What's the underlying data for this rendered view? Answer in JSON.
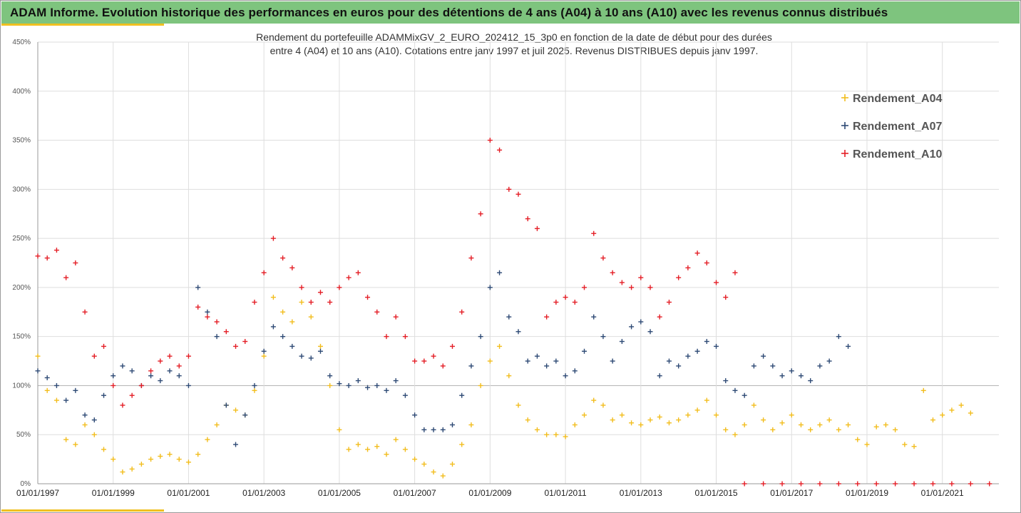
{
  "banner": {
    "title": "ADAM Informe. Evolution historique des performances en euros pour des détentions de 4 ans (A04) à 10 ans (A10) avec les revenus connus distribués"
  },
  "chart_data": {
    "type": "scatter",
    "title": "Rendement du portefeuille ADAMMixGV_2_EURO_202412_15_3p0 en fonction de la date de début pour des durées",
    "subtitle": "entre 4 (A04) et 10 ans (A10). Cotations entre janv 1997 et juil 2025. Revenus DISTRIBUES depuis janv 1997.",
    "xlabel": "",
    "ylabel": "",
    "x_range": [
      "01/01/1997",
      "01/07/2022"
    ],
    "ylim": [
      0,
      450
    ],
    "y_unit": "%",
    "yticks": [
      "0%",
      "50%",
      "100%",
      "150%",
      "200%",
      "250%",
      "300%",
      "350%",
      "400%",
      "450%"
    ],
    "xticks": [
      "01/01/1997",
      "01/01/1999",
      "01/01/2001",
      "01/01/2003",
      "01/01/2005",
      "01/01/2007",
      "01/01/2009",
      "01/01/2011",
      "01/01/2013",
      "01/01/2015",
      "01/01/2017",
      "01/01/2019",
      "01/01/2021"
    ],
    "grid": true,
    "marker": "plus",
    "legend_position": "right",
    "series": [
      {
        "name": "Rendement_A04",
        "color": "#f2bd1d",
        "points": [
          [
            "1997-01",
            130
          ],
          [
            "1997-04",
            95
          ],
          [
            "1997-07",
            85
          ],
          [
            "1997-10",
            45
          ],
          [
            "1998-01",
            40
          ],
          [
            "1998-04",
            60
          ],
          [
            "1998-07",
            50
          ],
          [
            "1998-10",
            35
          ],
          [
            "1999-01",
            25
          ],
          [
            "1999-04",
            12
          ],
          [
            "1999-07",
            15
          ],
          [
            "1999-10",
            20
          ],
          [
            "2000-01",
            25
          ],
          [
            "2000-04",
            28
          ],
          [
            "2000-07",
            30
          ],
          [
            "2000-10",
            25
          ],
          [
            "2001-01",
            22
          ],
          [
            "2001-04",
            30
          ],
          [
            "2001-07",
            45
          ],
          [
            "2001-10",
            60
          ],
          [
            "2002-01",
            80
          ],
          [
            "2002-04",
            75
          ],
          [
            "2002-07",
            70
          ],
          [
            "2002-10",
            95
          ],
          [
            "2003-01",
            130
          ],
          [
            "2003-04",
            190
          ],
          [
            "2003-07",
            175
          ],
          [
            "2003-10",
            165
          ],
          [
            "2004-01",
            185
          ],
          [
            "2004-04",
            170
          ],
          [
            "2004-07",
            140
          ],
          [
            "2004-10",
            100
          ],
          [
            "2005-01",
            55
          ],
          [
            "2005-04",
            35
          ],
          [
            "2005-07",
            40
          ],
          [
            "2005-10",
            35
          ],
          [
            "2006-01",
            38
          ],
          [
            "2006-04",
            30
          ],
          [
            "2006-07",
            45
          ],
          [
            "2006-10",
            35
          ],
          [
            "2007-01",
            25
          ],
          [
            "2007-04",
            20
          ],
          [
            "2007-07",
            12
          ],
          [
            "2007-10",
            8
          ],
          [
            "2008-01",
            20
          ],
          [
            "2008-04",
            40
          ],
          [
            "2008-07",
            60
          ],
          [
            "2008-10",
            100
          ],
          [
            "2009-01",
            125
          ],
          [
            "2009-04",
            140
          ],
          [
            "2009-07",
            110
          ],
          [
            "2009-10",
            80
          ],
          [
            "2010-01",
            65
          ],
          [
            "2010-04",
            55
          ],
          [
            "2010-07",
            50
          ],
          [
            "2010-10",
            50
          ],
          [
            "2011-01",
            48
          ],
          [
            "2011-04",
            60
          ],
          [
            "2011-07",
            70
          ],
          [
            "2011-10",
            85
          ],
          [
            "2012-01",
            80
          ],
          [
            "2012-04",
            65
          ],
          [
            "2012-07",
            70
          ],
          [
            "2012-10",
            62
          ],
          [
            "2013-01",
            60
          ],
          [
            "2013-04",
            65
          ],
          [
            "2013-07",
            68
          ],
          [
            "2013-10",
            62
          ],
          [
            "2014-01",
            65
          ],
          [
            "2014-04",
            70
          ],
          [
            "2014-07",
            75
          ],
          [
            "2014-10",
            85
          ],
          [
            "2015-01",
            70
          ],
          [
            "2015-04",
            55
          ],
          [
            "2015-07",
            50
          ],
          [
            "2015-10",
            60
          ],
          [
            "2016-01",
            80
          ],
          [
            "2016-04",
            65
          ],
          [
            "2016-07",
            55
          ],
          [
            "2016-10",
            62
          ],
          [
            "2017-01",
            70
          ],
          [
            "2017-04",
            60
          ],
          [
            "2017-07",
            55
          ],
          [
            "2017-10",
            60
          ],
          [
            "2018-01",
            65
          ],
          [
            "2018-04",
            55
          ],
          [
            "2018-07",
            60
          ],
          [
            "2018-10",
            45
          ],
          [
            "2019-01",
            40
          ],
          [
            "2019-04",
            58
          ],
          [
            "2019-07",
            60
          ],
          [
            "2019-10",
            55
          ],
          [
            "2020-01",
            40
          ],
          [
            "2020-04",
            38
          ],
          [
            "2020-07",
            95
          ],
          [
            "2020-10",
            65
          ],
          [
            "2021-01",
            70
          ],
          [
            "2021-04",
            75
          ],
          [
            "2021-07",
            80
          ],
          [
            "2021-10",
            72
          ]
        ]
      },
      {
        "name": "Rendement_A07",
        "color": "#2e4a75",
        "points": [
          [
            "1997-01",
            115
          ],
          [
            "1997-04",
            108
          ],
          [
            "1997-07",
            100
          ],
          [
            "1997-10",
            85
          ],
          [
            "1998-01",
            95
          ],
          [
            "1998-04",
            70
          ],
          [
            "1998-07",
            65
          ],
          [
            "1998-10",
            90
          ],
          [
            "1999-01",
            110
          ],
          [
            "1999-04",
            120
          ],
          [
            "1999-07",
            115
          ],
          [
            "1999-10",
            100
          ],
          [
            "2000-01",
            110
          ],
          [
            "2000-04",
            105
          ],
          [
            "2000-07",
            115
          ],
          [
            "2000-10",
            110
          ],
          [
            "2001-01",
            100
          ],
          [
            "2001-04",
            200
          ],
          [
            "2001-07",
            175
          ],
          [
            "2001-10",
            150
          ],
          [
            "2002-01",
            80
          ],
          [
            "2002-04",
            40
          ],
          [
            "2002-07",
            70
          ],
          [
            "2002-10",
            100
          ],
          [
            "2003-01",
            135
          ],
          [
            "2003-04",
            160
          ],
          [
            "2003-07",
            150
          ],
          [
            "2003-10",
            140
          ],
          [
            "2004-01",
            130
          ],
          [
            "2004-04",
            128
          ],
          [
            "2004-07",
            135
          ],
          [
            "2004-10",
            110
          ],
          [
            "2005-01",
            102
          ],
          [
            "2005-04",
            100
          ],
          [
            "2005-07",
            105
          ],
          [
            "2005-10",
            98
          ],
          [
            "2006-01",
            100
          ],
          [
            "2006-04",
            95
          ],
          [
            "2006-07",
            105
          ],
          [
            "2006-10",
            90
          ],
          [
            "2007-01",
            70
          ],
          [
            "2007-04",
            55
          ],
          [
            "2007-07",
            55
          ],
          [
            "2007-10",
            55
          ],
          [
            "2008-01",
            60
          ],
          [
            "2008-04",
            90
          ],
          [
            "2008-07",
            120
          ],
          [
            "2008-10",
            150
          ],
          [
            "2009-01",
            200
          ],
          [
            "2009-04",
            215
          ],
          [
            "2009-07",
            170
          ],
          [
            "2009-10",
            155
          ],
          [
            "2010-01",
            125
          ],
          [
            "2010-04",
            130
          ],
          [
            "2010-07",
            120
          ],
          [
            "2010-10",
            125
          ],
          [
            "2011-01",
            110
          ],
          [
            "2011-04",
            115
          ],
          [
            "2011-07",
            135
          ],
          [
            "2011-10",
            170
          ],
          [
            "2012-01",
            150
          ],
          [
            "2012-04",
            125
          ],
          [
            "2012-07",
            145
          ],
          [
            "2012-10",
            160
          ],
          [
            "2013-01",
            165
          ],
          [
            "2013-04",
            155
          ],
          [
            "2013-07",
            110
          ],
          [
            "2013-10",
            125
          ],
          [
            "2014-01",
            120
          ],
          [
            "2014-04",
            130
          ],
          [
            "2014-07",
            135
          ],
          [
            "2014-10",
            145
          ],
          [
            "2015-01",
            140
          ],
          [
            "2015-04",
            105
          ],
          [
            "2015-07",
            95
          ],
          [
            "2015-10",
            90
          ],
          [
            "2016-01",
            120
          ],
          [
            "2016-04",
            130
          ],
          [
            "2016-07",
            120
          ],
          [
            "2016-10",
            110
          ],
          [
            "2017-01",
            115
          ],
          [
            "2017-04",
            110
          ],
          [
            "2017-07",
            105
          ],
          [
            "2017-10",
            120
          ],
          [
            "2018-01",
            125
          ],
          [
            "2018-04",
            150
          ],
          [
            "2018-07",
            140
          ]
        ]
      },
      {
        "name": "Rendement_A10",
        "color": "#e41e26",
        "points": [
          [
            "1997-01",
            232
          ],
          [
            "1997-04",
            230
          ],
          [
            "1997-07",
            238
          ],
          [
            "1997-10",
            210
          ],
          [
            "1998-01",
            225
          ],
          [
            "1998-04",
            175
          ],
          [
            "1998-07",
            130
          ],
          [
            "1998-10",
            140
          ],
          [
            "1999-01",
            100
          ],
          [
            "1999-04",
            80
          ],
          [
            "1999-07",
            90
          ],
          [
            "1999-10",
            100
          ],
          [
            "2000-01",
            115
          ],
          [
            "2000-04",
            125
          ],
          [
            "2000-07",
            130
          ],
          [
            "2000-10",
            120
          ],
          [
            "2001-01",
            130
          ],
          [
            "2001-04",
            180
          ],
          [
            "2001-07",
            170
          ],
          [
            "2001-10",
            165
          ],
          [
            "2002-01",
            155
          ],
          [
            "2002-04",
            140
          ],
          [
            "2002-07",
            145
          ],
          [
            "2002-10",
            185
          ],
          [
            "2003-01",
            215
          ],
          [
            "2003-04",
            250
          ],
          [
            "2003-07",
            230
          ],
          [
            "2003-10",
            220
          ],
          [
            "2004-01",
            200
          ],
          [
            "2004-04",
            185
          ],
          [
            "2004-07",
            195
          ],
          [
            "2004-10",
            185
          ],
          [
            "2005-01",
            200
          ],
          [
            "2005-04",
            210
          ],
          [
            "2005-07",
            215
          ],
          [
            "2005-10",
            190
          ],
          [
            "2006-01",
            175
          ],
          [
            "2006-04",
            150
          ],
          [
            "2006-07",
            170
          ],
          [
            "2006-10",
            150
          ],
          [
            "2007-01",
            125
          ],
          [
            "2007-04",
            125
          ],
          [
            "2007-07",
            130
          ],
          [
            "2007-10",
            120
          ],
          [
            "2008-01",
            140
          ],
          [
            "2008-04",
            175
          ],
          [
            "2008-07",
            230
          ],
          [
            "2008-10",
            275
          ],
          [
            "2009-01",
            350
          ],
          [
            "2009-04",
            340
          ],
          [
            "2009-07",
            300
          ],
          [
            "2009-10",
            295
          ],
          [
            "2010-01",
            270
          ],
          [
            "2010-04",
            260
          ],
          [
            "2010-07",
            170
          ],
          [
            "2010-10",
            185
          ],
          [
            "2011-01",
            190
          ],
          [
            "2011-04",
            185
          ],
          [
            "2011-07",
            200
          ],
          [
            "2011-10",
            255
          ],
          [
            "2012-01",
            230
          ],
          [
            "2012-04",
            215
          ],
          [
            "2012-07",
            205
          ],
          [
            "2012-10",
            200
          ],
          [
            "2013-01",
            210
          ],
          [
            "2013-04",
            200
          ],
          [
            "2013-07",
            170
          ],
          [
            "2013-10",
            185
          ],
          [
            "2014-01",
            210
          ],
          [
            "2014-04",
            220
          ],
          [
            "2014-07",
            235
          ],
          [
            "2014-10",
            225
          ],
          [
            "2015-01",
            205
          ],
          [
            "2015-04",
            190
          ],
          [
            "2015-07",
            215
          ],
          [
            "2015-10",
            0
          ],
          [
            "2016-04",
            0
          ],
          [
            "2016-10",
            0
          ],
          [
            "2017-04",
            0
          ],
          [
            "2017-10",
            0
          ],
          [
            "2018-04",
            0
          ],
          [
            "2018-10",
            0
          ],
          [
            "2019-04",
            0
          ],
          [
            "2019-10",
            0
          ],
          [
            "2020-04",
            0
          ],
          [
            "2020-10",
            0
          ],
          [
            "2021-04",
            0
          ],
          [
            "2021-10",
            0
          ],
          [
            "2022-04",
            0
          ]
        ]
      }
    ]
  }
}
